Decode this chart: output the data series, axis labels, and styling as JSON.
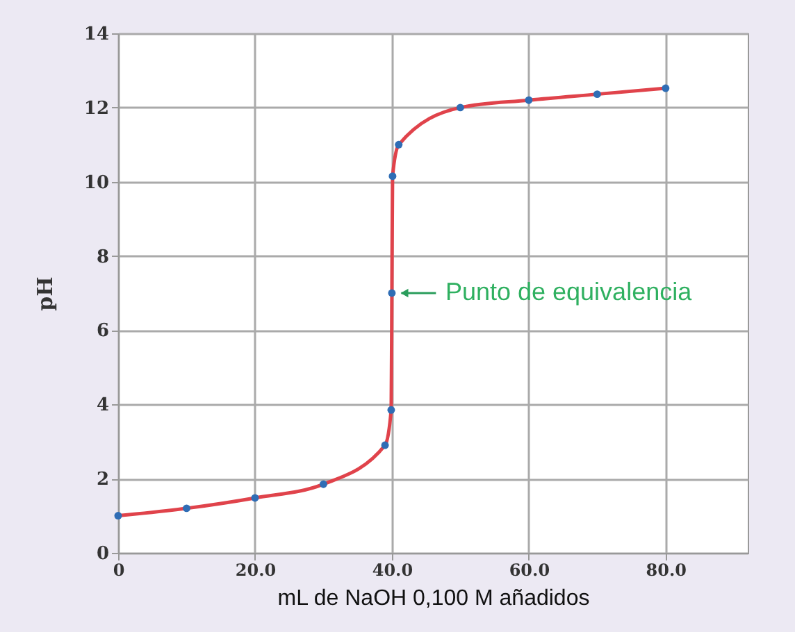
{
  "chart_data": {
    "type": "line",
    "xlabel": "mL de NaOH 0,100 M añadidos",
    "ylabel": "pH",
    "x": [
      0,
      10,
      20,
      30,
      39,
      39.9,
      40,
      40.1,
      41,
      50,
      60,
      70,
      80
    ],
    "series": [
      {
        "type": "line",
        "color": "#e0434b",
        "marker": "none",
        "values": [
          1.0,
          1.2,
          1.48,
          1.85,
          2.9,
          3.85,
          7.0,
          10.15,
          11.0,
          12.0,
          12.2,
          12.36,
          12.52
        ]
      },
      {
        "type": "scatter",
        "color": "#2f6db5",
        "marker": "circle",
        "values": [
          1.0,
          1.2,
          1.48,
          1.85,
          2.9,
          3.85,
          7.0,
          10.15,
          11.0,
          12.0,
          12.2,
          12.36,
          12.52
        ]
      }
    ],
    "xlim": [
      0,
      92
    ],
    "xticks": [
      0,
      {
        "value": 20,
        "label": "20.0"
      },
      {
        "value": 40,
        "label": "40.0"
      },
      {
        "value": 60,
        "label": "60.0"
      },
      {
        "value": 80,
        "label": "80.0"
      }
    ],
    "ylim": [
      0,
      14
    ],
    "yticks": [
      0,
      2,
      4,
      6,
      8,
      10,
      12,
      14
    ],
    "grid": true,
    "annotations": [
      {
        "text": "Punto de equivalencia",
        "x": 40,
        "y": 7
      }
    ]
  }
}
